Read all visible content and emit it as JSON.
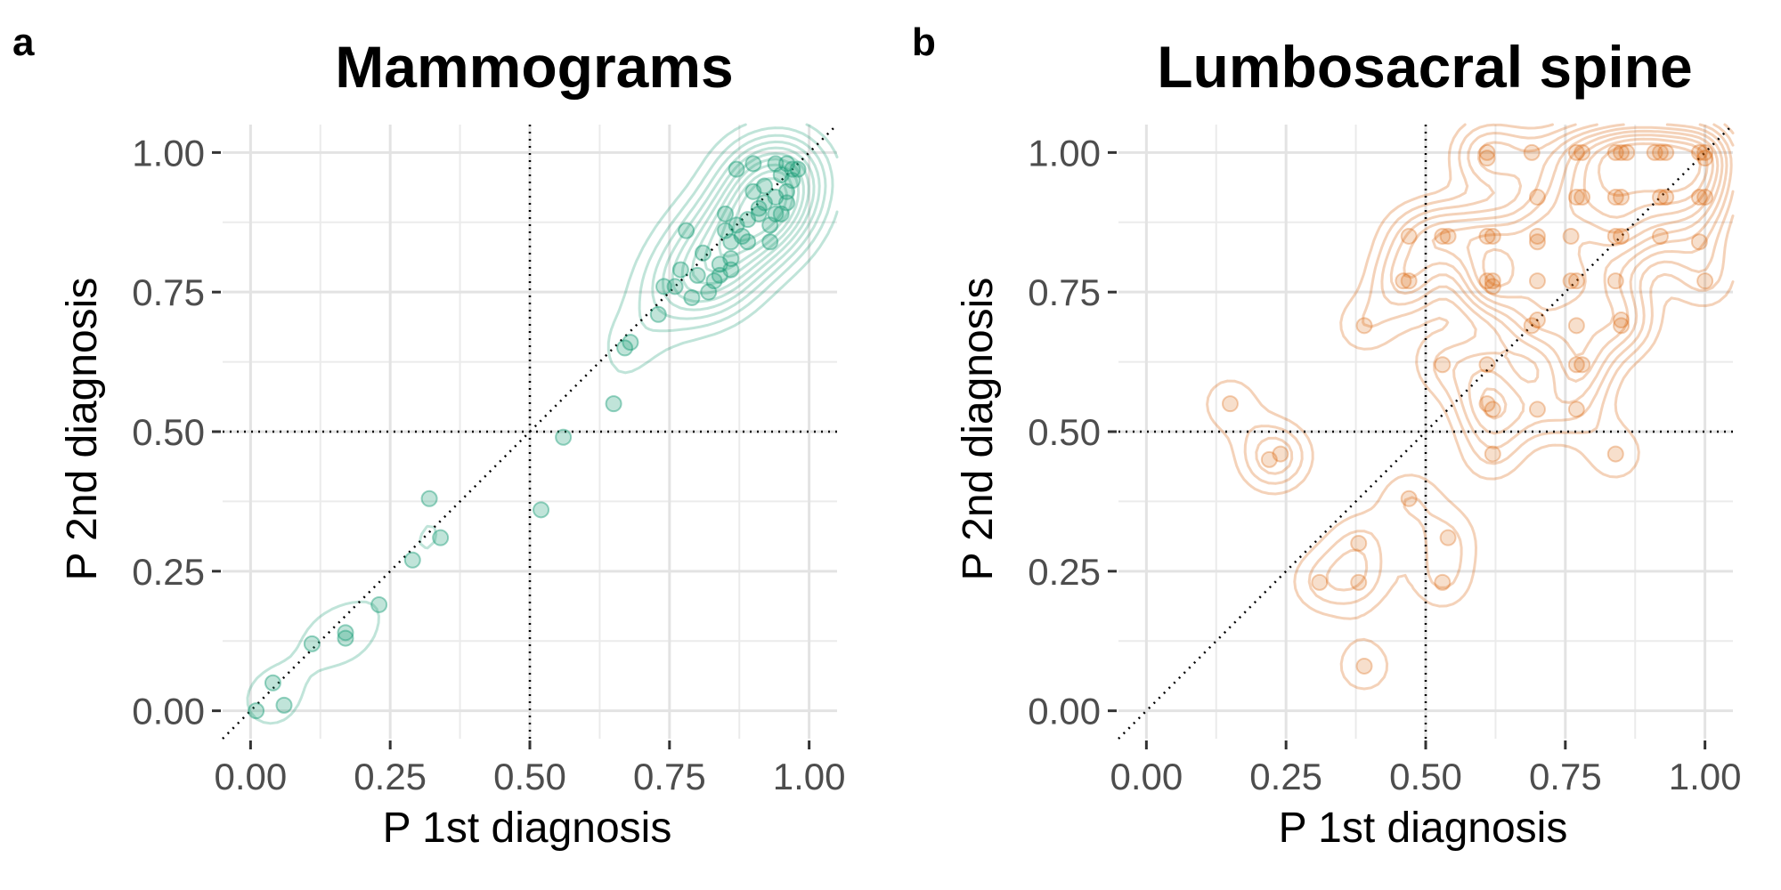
{
  "panels": [
    {
      "letter": "a",
      "title": "Mammograms",
      "xlabel": "P 1st diagnosis",
      "ylabel": "P 2nd diagnosis"
    },
    {
      "letter": "b",
      "title": "Lumbosacral spine",
      "xlabel": "P 1st diagnosis",
      "ylabel": "P 2nd diagnosis"
    }
  ],
  "chart_data": [
    {
      "type": "scatter",
      "title": "Mammograms",
      "xlabel": "P 1st diagnosis",
      "ylabel": "P 2nd diagnosis",
      "xlim": [
        -0.05,
        1.05
      ],
      "ylim": [
        -0.05,
        1.05
      ],
      "xticks": [
        "0.00",
        "0.25",
        "0.50",
        "0.75",
        "1.00"
      ],
      "yticks": [
        "0.00",
        "0.25",
        "0.50",
        "0.75",
        "1.00"
      ],
      "grid": true,
      "reference_lines": {
        "vertical": 0.5,
        "horizontal": 0.5,
        "diagonal": true
      },
      "point_color": "#1b9e77",
      "density_contours": true,
      "points": [
        [
          0.01,
          0.0
        ],
        [
          0.04,
          0.05
        ],
        [
          0.06,
          0.01
        ],
        [
          0.11,
          0.12
        ],
        [
          0.17,
          0.14
        ],
        [
          0.17,
          0.13
        ],
        [
          0.23,
          0.19
        ],
        [
          0.29,
          0.27
        ],
        [
          0.32,
          0.38
        ],
        [
          0.34,
          0.31
        ],
        [
          0.52,
          0.36
        ],
        [
          0.56,
          0.49
        ],
        [
          0.65,
          0.55
        ],
        [
          0.67,
          0.65
        ],
        [
          0.68,
          0.66
        ],
        [
          0.73,
          0.71
        ],
        [
          0.74,
          0.76
        ],
        [
          0.76,
          0.76
        ],
        [
          0.77,
          0.79
        ],
        [
          0.78,
          0.86
        ],
        [
          0.79,
          0.74
        ],
        [
          0.8,
          0.78
        ],
        [
          0.81,
          0.82
        ],
        [
          0.82,
          0.75
        ],
        [
          0.83,
          0.77
        ],
        [
          0.84,
          0.8
        ],
        [
          0.84,
          0.78
        ],
        [
          0.85,
          0.86
        ],
        [
          0.85,
          0.89
        ],
        [
          0.86,
          0.79
        ],
        [
          0.86,
          0.81
        ],
        [
          0.86,
          0.84
        ],
        [
          0.87,
          0.97
        ],
        [
          0.87,
          0.87
        ],
        [
          0.88,
          0.85
        ],
        [
          0.89,
          0.88
        ],
        [
          0.89,
          0.84
        ],
        [
          0.9,
          0.93
        ],
        [
          0.9,
          0.98
        ],
        [
          0.91,
          0.89
        ],
        [
          0.91,
          0.9
        ],
        [
          0.92,
          0.94
        ],
        [
          0.92,
          0.91
        ],
        [
          0.93,
          0.84
        ],
        [
          0.93,
          0.87
        ],
        [
          0.94,
          0.92
        ],
        [
          0.94,
          0.98
        ],
        [
          0.95,
          0.89
        ],
        [
          0.95,
          0.96
        ],
        [
          0.96,
          0.93
        ],
        [
          0.96,
          0.98
        ],
        [
          0.97,
          0.95
        ],
        [
          0.97,
          0.97
        ],
        [
          0.98,
          0.97
        ],
        [
          0.96,
          0.91
        ],
        [
          0.94,
          0.89
        ]
      ]
    },
    {
      "type": "scatter",
      "title": "Lumbosacral spine",
      "xlabel": "P 1st diagnosis",
      "ylabel": "P 2nd diagnosis",
      "xlim": [
        -0.05,
        1.05
      ],
      "ylim": [
        -0.05,
        1.05
      ],
      "xticks": [
        "0.00",
        "0.25",
        "0.50",
        "0.75",
        "1.00"
      ],
      "yticks": [
        "0.00",
        "0.25",
        "0.50",
        "0.75",
        "1.00"
      ],
      "grid": true,
      "reference_lines": {
        "vertical": 0.5,
        "horizontal": 0.5,
        "diagonal": true
      },
      "point_color": "#d95f02",
      "density_contours": true,
      "points": [
        [
          0.15,
          0.55
        ],
        [
          0.22,
          0.45
        ],
        [
          0.24,
          0.46
        ],
        [
          0.31,
          0.23
        ],
        [
          0.38,
          0.23
        ],
        [
          0.38,
          0.3
        ],
        [
          0.39,
          0.69
        ],
        [
          0.39,
          0.08
        ],
        [
          0.46,
          0.77
        ],
        [
          0.47,
          0.38
        ],
        [
          0.47,
          0.85
        ],
        [
          0.47,
          0.77
        ],
        [
          0.53,
          0.62
        ],
        [
          0.53,
          0.23
        ],
        [
          0.54,
          0.31
        ],
        [
          0.54,
          0.85
        ],
        [
          0.53,
          0.85
        ],
        [
          0.61,
          0.55
        ],
        [
          0.61,
          0.62
        ],
        [
          0.62,
          0.54
        ],
        [
          0.62,
          0.46
        ],
        [
          0.61,
          0.85
        ],
        [
          0.62,
          0.85
        ],
        [
          0.61,
          0.77
        ],
        [
          0.62,
          0.77
        ],
        [
          0.62,
          0.76
        ],
        [
          0.61,
          1.0
        ],
        [
          0.61,
          0.99
        ],
        [
          0.69,
          0.69
        ],
        [
          0.7,
          0.7
        ],
        [
          0.7,
          0.54
        ],
        [
          0.69,
          1.0
        ],
        [
          0.7,
          0.92
        ],
        [
          0.7,
          0.85
        ],
        [
          0.7,
          0.84
        ],
        [
          0.7,
          0.77
        ],
        [
          0.76,
          0.77
        ],
        [
          0.77,
          0.77
        ],
        [
          0.77,
          0.54
        ],
        [
          0.77,
          0.62
        ],
        [
          0.78,
          0.62
        ],
        [
          0.77,
          0.69
        ],
        [
          0.76,
          0.85
        ],
        [
          0.77,
          0.92
        ],
        [
          0.78,
          0.92
        ],
        [
          0.77,
          1.0
        ],
        [
          0.78,
          1.0
        ],
        [
          0.84,
          0.46
        ],
        [
          0.85,
          0.7
        ],
        [
          0.85,
          0.69
        ],
        [
          0.84,
          0.77
        ],
        [
          0.84,
          0.85
        ],
        [
          0.85,
          0.85
        ],
        [
          0.84,
          0.92
        ],
        [
          0.85,
          0.92
        ],
        [
          0.84,
          1.0
        ],
        [
          0.85,
          1.0
        ],
        [
          0.86,
          1.0
        ],
        [
          0.92,
          0.85
        ],
        [
          0.92,
          0.92
        ],
        [
          0.93,
          0.92
        ],
        [
          0.92,
          1.0
        ],
        [
          0.93,
          1.0
        ],
        [
          0.91,
          1.0
        ],
        [
          0.99,
          0.84
        ],
        [
          1.0,
          0.77
        ],
        [
          0.99,
          0.92
        ],
        [
          1.0,
          0.92
        ],
        [
          1.0,
          1.0
        ],
        [
          0.99,
          1.0
        ],
        [
          1.0,
          0.99
        ]
      ]
    }
  ]
}
